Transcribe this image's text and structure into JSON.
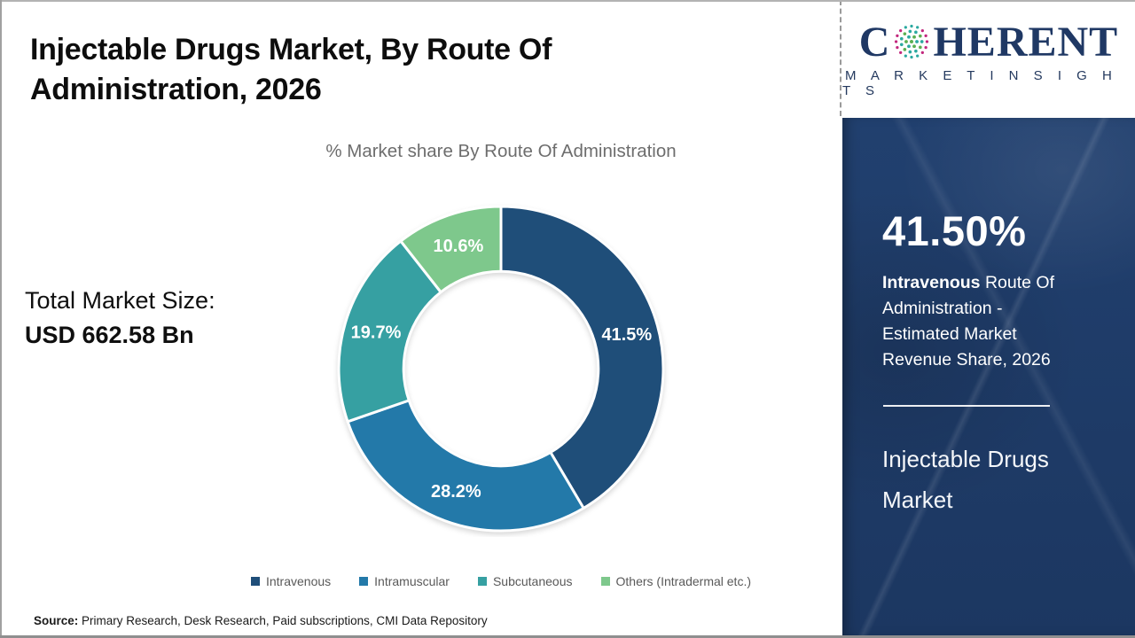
{
  "header": {
    "title": "Injectable Drugs Market, By Route Of Administration, 2026"
  },
  "brand": {
    "name_prefix": "C",
    "name_suffix": "HERENT",
    "tagline": "M A R K E T   I N S I G H T S",
    "navy": "#1F3864",
    "globe_colors": {
      "teal": "#2BA9A0",
      "green": "#5BB052",
      "magenta": "#C2277D"
    }
  },
  "chart_data": {
    "type": "pie",
    "subtype": "donut",
    "title": "% Market share By Route Of Administration",
    "start_angle_deg": 0,
    "direction": "clockwise",
    "inner_radius_ratio": 0.6,
    "label_color": "#ffffff",
    "legend_position": "bottom",
    "series": [
      {
        "name": "Intravenous",
        "value": 41.5,
        "label": "41.5%",
        "color": "#1F4E79"
      },
      {
        "name": "Intramuscular",
        "value": 28.2,
        "label": "28.2%",
        "color": "#2379A9"
      },
      {
        "name": "Subcutaneous",
        "value": 19.7,
        "label": "19.7%",
        "color": "#36A0A2"
      },
      {
        "name": "Others (Intradermal etc.)",
        "value": 10.6,
        "label": "10.6%",
        "color": "#7EC88C"
      }
    ]
  },
  "market_size": {
    "label": "Total Market Size:",
    "value": "USD 662.58 Bn"
  },
  "sidebar": {
    "bg": "#1E3A68",
    "stat_value": "41.50%",
    "stat_lead": "Intravenous",
    "stat_rest": " Route Of Administration - Estimated Market Revenue Share, 2026",
    "product": "Injectable Drugs Market"
  },
  "source": {
    "label": "Source:",
    "text": " Primary Research, Desk Research, Paid subscriptions, CMI Data Repository"
  }
}
